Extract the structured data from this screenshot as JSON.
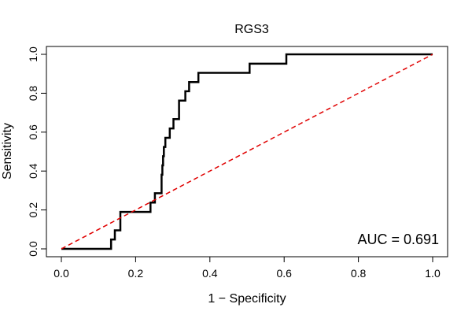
{
  "chart_data": {
    "type": "line",
    "title": "RGS3",
    "xlabel": "1 − Specificity",
    "ylabel": "Sensitivity",
    "xlim": [
      0,
      1
    ],
    "ylim": [
      0,
      1
    ],
    "xticks": [
      "0.0",
      "0.2",
      "0.4",
      "0.6",
      "0.8",
      "1.0"
    ],
    "yticks": [
      "0.0",
      "0.2",
      "0.4",
      "0.6",
      "0.8",
      "1.0"
    ],
    "annotation": "AUC = 0.691",
    "series": [
      {
        "color": "#000000",
        "x": [
          0.0,
          0.134,
          0.134,
          0.144,
          0.144,
          0.159,
          0.159,
          0.24,
          0.24,
          0.252,
          0.252,
          0.27,
          0.27,
          0.272,
          0.272,
          0.274,
          0.274,
          0.276,
          0.276,
          0.28,
          0.28,
          0.285,
          0.285,
          0.292,
          0.292,
          0.302,
          0.302,
          0.317,
          0.317,
          0.334,
          0.334,
          0.344,
          0.344,
          0.369,
          0.369,
          0.507,
          0.507,
          0.606,
          0.606,
          0.656,
          0.656,
          1.0
        ],
        "y": [
          0.0,
          0.0,
          0.048,
          0.048,
          0.095,
          0.095,
          0.19,
          0.19,
          0.238,
          0.238,
          0.286,
          0.286,
          0.381,
          0.381,
          0.429,
          0.429,
          0.476,
          0.476,
          0.524,
          0.524,
          0.571,
          0.571,
          0.571,
          0.571,
          0.619,
          0.619,
          0.667,
          0.667,
          0.762,
          0.762,
          0.81,
          0.81,
          0.857,
          0.857,
          0.905,
          0.905,
          0.952,
          0.952,
          1.0,
          1.0,
          1.0,
          1.0
        ]
      },
      {
        "color": "#e00000",
        "style": "dashed",
        "x": [
          0,
          1
        ],
        "y": [
          0,
          1
        ]
      }
    ],
    "grid": false
  }
}
